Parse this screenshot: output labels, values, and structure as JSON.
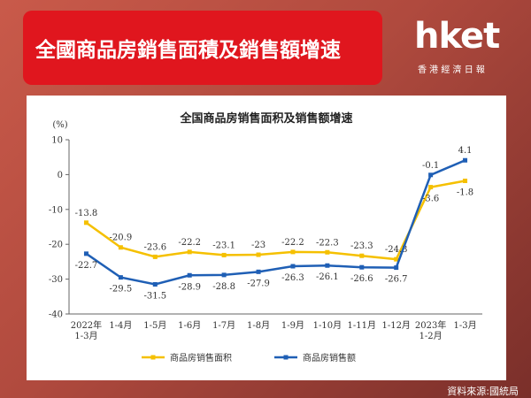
{
  "header": {
    "title": "全國商品房銷售面積及銷售額增速",
    "logo": "hket",
    "logo_sub": "香 港 經 濟 日 報"
  },
  "source": "資料來源:國統局",
  "chart_data": {
    "type": "line",
    "title": "全国商品房销售面积及销售额增速",
    "y_label": "(%)",
    "categories": [
      "2022年\n1-3月",
      "1-4月",
      "1-5月",
      "1-6月",
      "1-7月",
      "1-8月",
      "1-9月",
      "1-10月",
      "1-11月",
      "1-12月",
      "2023年\n1-2月",
      "1-3月"
    ],
    "ylim": [
      -40,
      10
    ],
    "yticks": [
      10,
      0,
      -10,
      -20,
      -30,
      -40
    ],
    "series": [
      {
        "name": "商品房销售面积",
        "color": "#f5c000",
        "values": [
          -13.8,
          -20.9,
          -23.6,
          -22.2,
          -23.1,
          -23.0,
          -22.2,
          -22.3,
          -23.3,
          -24.3,
          -3.6,
          -1.8
        ]
      },
      {
        "name": "商品房销售额",
        "color": "#1f5fb5",
        "values": [
          -22.7,
          -29.5,
          -31.5,
          -28.9,
          -28.8,
          -27.9,
          -26.3,
          -26.1,
          -26.6,
          -26.7,
          -0.1,
          4.1
        ]
      }
    ]
  }
}
